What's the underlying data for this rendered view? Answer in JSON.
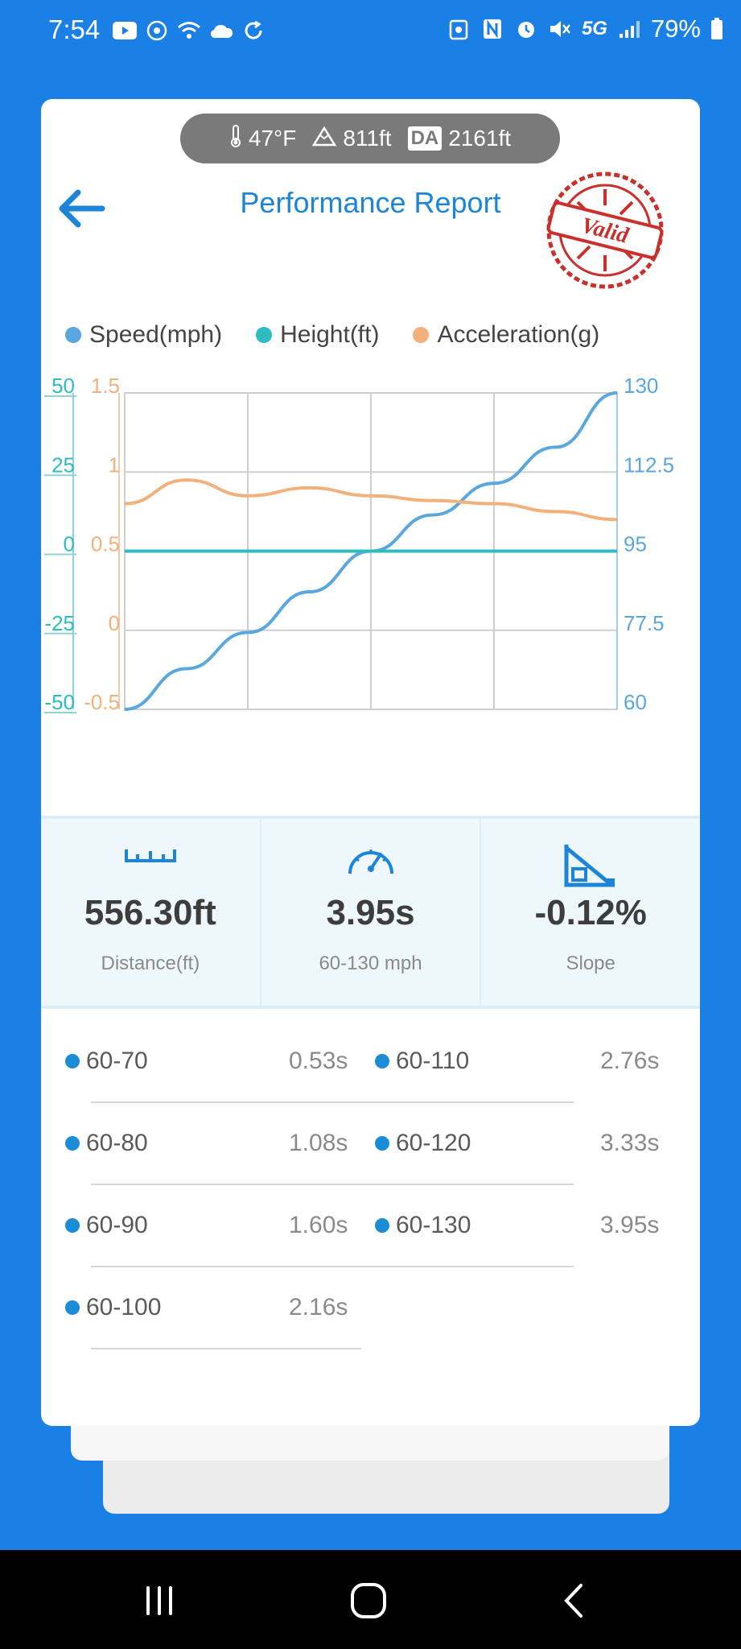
{
  "status_bar": {
    "time": "7:54",
    "network": "5G",
    "battery": "79%"
  },
  "info_pill": {
    "temperature": "47°F",
    "elevation": "811ft",
    "da_label": "DA",
    "density_altitude": "2161ft"
  },
  "header": {
    "title": "Performance Report",
    "stamp_text": "Valid"
  },
  "colors": {
    "brand_blue": "#1b80e6",
    "speed": "#5aa7e0",
    "height": "#2fbcc0",
    "acceleration": "#f2b07b",
    "stamp_red": "#c9302c"
  },
  "legend": [
    {
      "label": "Speed(mph)",
      "color": "#5aa7e0"
    },
    {
      "label": "Height(ft)",
      "color": "#2fbcc0"
    },
    {
      "label": "Acceleration(g)",
      "color": "#f2b07b"
    }
  ],
  "chart_data": {
    "type": "line",
    "title": "",
    "left_axis_height": {
      "ticks": [
        "50",
        "25",
        "0",
        "-25",
        "-50"
      ],
      "ylim": [
        -50,
        50
      ]
    },
    "left_axis_accel": {
      "ticks": [
        "1.5",
        "1",
        "0.5",
        "0",
        "-0.5"
      ],
      "ylim": [
        -0.5,
        1.5
      ]
    },
    "right_axis_speed": {
      "ticks": [
        "130",
        "112.5",
        "95",
        "77.5",
        "60"
      ],
      "ylim": [
        60,
        130
      ]
    },
    "x": [
      0,
      0.5,
      1.0,
      1.5,
      2.0,
      2.5,
      3.0,
      3.5,
      4.0
    ],
    "series": [
      {
        "name": "Speed(mph)",
        "axis": "speed",
        "values": [
          60,
          69,
          77,
          86,
          95,
          103,
          110,
          118,
          130
        ]
      },
      {
        "name": "Height(ft)",
        "axis": "height",
        "values": [
          0,
          0,
          0,
          0,
          0,
          0,
          0,
          0,
          0
        ]
      },
      {
        "name": "Acceleration(g)",
        "axis": "acceleration",
        "values": [
          0.8,
          0.95,
          0.85,
          0.9,
          0.85,
          0.82,
          0.8,
          0.75,
          0.7
        ]
      }
    ],
    "grid": true
  },
  "stats": [
    {
      "icon": "ruler-icon",
      "value": "556.30ft",
      "label": "Distance(ft)"
    },
    {
      "icon": "speedometer-icon",
      "value": "3.95s",
      "label": "60-130 mph"
    },
    {
      "icon": "slope-icon",
      "value": "-0.12%",
      "label": "Slope"
    }
  ],
  "splits": [
    {
      "label": "60-70",
      "time": "0.53s"
    },
    {
      "label": "60-110",
      "time": "2.76s"
    },
    {
      "label": "60-80",
      "time": "1.08s"
    },
    {
      "label": "60-120",
      "time": "3.33s"
    },
    {
      "label": "60-90",
      "time": "1.60s"
    },
    {
      "label": "60-130",
      "time": "3.95s"
    },
    {
      "label": "60-100",
      "time": "2.16s"
    }
  ]
}
